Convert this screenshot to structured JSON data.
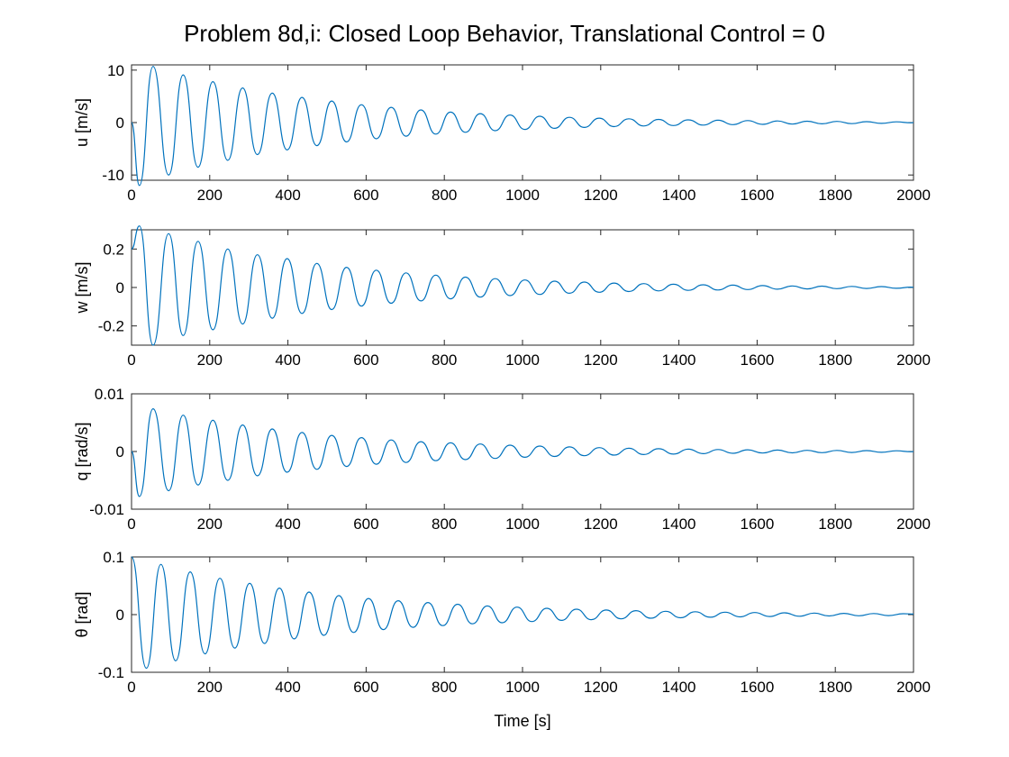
{
  "figure": {
    "title": "Problem 8d,i: Closed Loop Behavior, Translational Control = 0",
    "xlabel": "Time [s]",
    "line_color": "#0072BD"
  },
  "chart_data": [
    {
      "type": "line",
      "title": "Problem 8d,i: Closed Loop Behavior, Translational Control = 0",
      "xlabel": "",
      "ylabel": "u [m/s]",
      "xlim": [
        0,
        2000
      ],
      "ylim": [
        -11,
        11
      ],
      "xticks": [
        0,
        200,
        400,
        600,
        800,
        1000,
        1200,
        1400,
        1600,
        1800,
        2000
      ],
      "yticks": [
        -10,
        0,
        10
      ],
      "ytick_labels": [
        "-10",
        "0",
        "10"
      ],
      "grid": false,
      "series": [
        {
          "color": "#0072BD",
          "x": [
            0,
            20,
            55,
            95,
            132,
            170,
            208,
            246,
            284,
            322,
            360,
            398,
            436,
            474,
            512,
            550,
            588,
            626,
            664,
            702,
            740,
            778,
            816,
            854,
            892,
            930,
            968,
            1006,
            1044,
            1082,
            1120,
            1158,
            1196,
            1234,
            1272,
            1310,
            1348,
            1386,
            1424,
            1462,
            1500,
            1538,
            1576,
            1614,
            1652,
            1690,
            1728,
            1766,
            1804,
            1842,
            1880,
            1918,
            1956,
            1994,
            2000
          ],
          "y": [
            0,
            -12,
            10.7,
            -10,
            9.1,
            -8.5,
            7.8,
            -7.2,
            6.6,
            -6.1,
            5.6,
            -5.2,
            4.8,
            -4.4,
            4.1,
            -3.7,
            3.4,
            -3.1,
            2.9,
            -2.6,
            2.4,
            -2.2,
            2.0,
            -1.85,
            1.7,
            -1.55,
            1.45,
            -1.3,
            1.2,
            -1.1,
            1.0,
            -0.92,
            0.85,
            -0.78,
            0.72,
            -0.66,
            0.61,
            -0.56,
            0.52,
            -0.48,
            0.44,
            -0.4,
            0.37,
            -0.34,
            0.31,
            -0.29,
            0.26,
            -0.24,
            0.22,
            -0.2,
            0.18,
            -0.16,
            0.14,
            -0.05,
            0
          ]
        }
      ]
    },
    {
      "type": "line",
      "xlabel": "",
      "ylabel": "w [m/s]",
      "xlim": [
        0,
        2000
      ],
      "ylim": [
        -0.3,
        0.3
      ],
      "xticks": [
        0,
        200,
        400,
        600,
        800,
        1000,
        1200,
        1400,
        1600,
        1800,
        2000
      ],
      "yticks": [
        -0.2,
        0,
        0.2
      ],
      "ytick_labels": [
        "-0.2",
        "0",
        "0.2"
      ],
      "grid": false,
      "series": [
        {
          "color": "#0072BD",
          "x": [
            0,
            20,
            55,
            95,
            132,
            170,
            208,
            246,
            284,
            322,
            360,
            398,
            436,
            474,
            512,
            550,
            588,
            626,
            664,
            702,
            740,
            778,
            816,
            854,
            892,
            930,
            968,
            1006,
            1044,
            1082,
            1120,
            1158,
            1196,
            1234,
            1272,
            1310,
            1348,
            1386,
            1424,
            1462,
            1500,
            1538,
            1576,
            1614,
            1652,
            1690,
            1728,
            1766,
            1804,
            1842,
            1880,
            1918,
            1956,
            1994,
            2000
          ],
          "y": [
            0.2,
            0.32,
            -0.3,
            0.28,
            -0.25,
            0.24,
            -0.22,
            0.2,
            -0.19,
            0.17,
            -0.16,
            0.15,
            -0.135,
            0.125,
            -0.115,
            0.105,
            -0.097,
            0.09,
            -0.082,
            0.076,
            -0.07,
            0.064,
            -0.059,
            0.054,
            -0.05,
            0.046,
            -0.042,
            0.039,
            -0.036,
            0.033,
            -0.03,
            0.028,
            -0.025,
            0.023,
            -0.021,
            0.02,
            -0.018,
            0.017,
            -0.015,
            0.014,
            -0.013,
            0.012,
            -0.011,
            0.01,
            -0.009,
            0.008,
            -0.0075,
            0.007,
            -0.006,
            0.0055,
            -0.005,
            0.0045,
            -0.004,
            0.002,
            0.001
          ]
        }
      ]
    },
    {
      "type": "line",
      "xlabel": "",
      "ylabel": "q [rad/s]",
      "xlim": [
        0,
        2000
      ],
      "ylim": [
        -0.01,
        0.01
      ],
      "xticks": [
        0,
        200,
        400,
        600,
        800,
        1000,
        1200,
        1400,
        1600,
        1800,
        2000
      ],
      "yticks": [
        -0.01,
        0,
        0.01
      ],
      "ytick_labels": [
        "-0.01",
        "0",
        "0.01"
      ],
      "grid": false,
      "series": [
        {
          "color": "#0072BD",
          "x": [
            0,
            20,
            55,
            95,
            132,
            170,
            208,
            246,
            284,
            322,
            360,
            398,
            436,
            474,
            512,
            550,
            588,
            626,
            664,
            702,
            740,
            778,
            816,
            854,
            892,
            930,
            968,
            1006,
            1044,
            1082,
            1120,
            1158,
            1196,
            1234,
            1272,
            1310,
            1348,
            1386,
            1424,
            1462,
            1500,
            1538,
            1576,
            1614,
            1652,
            1690,
            1728,
            1766,
            1804,
            1842,
            1880,
            1918,
            1956,
            1994,
            2000
          ],
          "y": [
            0,
            -0.0078,
            0.0074,
            -0.0068,
            0.0063,
            -0.0058,
            0.0054,
            -0.005,
            0.0046,
            -0.0042,
            0.0039,
            -0.0036,
            0.0033,
            -0.0031,
            0.0028,
            -0.0026,
            0.0024,
            -0.0022,
            0.002,
            -0.0019,
            0.0017,
            -0.0016,
            0.0015,
            -0.0014,
            0.0013,
            -0.0012,
            0.0011,
            -0.001,
            0.00093,
            -0.00086,
            0.00079,
            -0.00073,
            0.00067,
            -0.00062,
            0.00057,
            -0.00053,
            0.00049,
            -0.00045,
            0.00041,
            -0.00038,
            0.00035,
            -0.00032,
            0.0003,
            -0.00027,
            0.00025,
            -0.00023,
            0.00021,
            -0.0002,
            0.00018,
            -0.00017,
            0.00015,
            -0.00014,
            0.00013,
            -4e-05,
            0
          ]
        }
      ]
    },
    {
      "type": "line",
      "xlabel": "Time [s]",
      "ylabel": "θ [rad]",
      "xlim": [
        0,
        2000
      ],
      "ylim": [
        -0.1,
        0.1
      ],
      "xticks": [
        0,
        200,
        400,
        600,
        800,
        1000,
        1200,
        1400,
        1600,
        1800,
        2000
      ],
      "yticks": [
        -0.1,
        0,
        0.1
      ],
      "ytick_labels": [
        "-0.1",
        "0",
        "0.1"
      ],
      "grid": false,
      "series": [
        {
          "color": "#0072BD",
          "x": [
            0,
            38,
            75,
            113,
            150,
            188,
            226,
            264,
            302,
            340,
            378,
            416,
            454,
            492,
            530,
            568,
            606,
            644,
            682,
            720,
            758,
            796,
            834,
            872,
            910,
            948,
            986,
            1024,
            1062,
            1100,
            1138,
            1176,
            1214,
            1252,
            1290,
            1328,
            1366,
            1404,
            1442,
            1480,
            1518,
            1556,
            1594,
            1632,
            1670,
            1708,
            1746,
            1784,
            1822,
            1860,
            1898,
            1936,
            1974,
            2000
          ],
          "y": [
            0.1,
            -0.093,
            0.087,
            -0.08,
            0.074,
            -0.068,
            0.063,
            -0.058,
            0.054,
            -0.05,
            0.046,
            -0.042,
            0.039,
            -0.036,
            0.033,
            -0.031,
            0.028,
            -0.026,
            0.024,
            -0.022,
            0.021,
            -0.019,
            0.018,
            -0.016,
            0.015,
            -0.014,
            0.013,
            -0.012,
            0.011,
            -0.01,
            0.0094,
            -0.0087,
            0.008,
            -0.0074,
            0.0068,
            -0.0063,
            0.0058,
            -0.0054,
            0.005,
            -0.0046,
            0.0042,
            -0.0039,
            0.0036,
            -0.0033,
            0.0031,
            -0.0028,
            0.0026,
            -0.0024,
            0.0022,
            -0.002,
            0.0019,
            -0.0017,
            0.0016,
            0.001
          ]
        }
      ]
    }
  ]
}
